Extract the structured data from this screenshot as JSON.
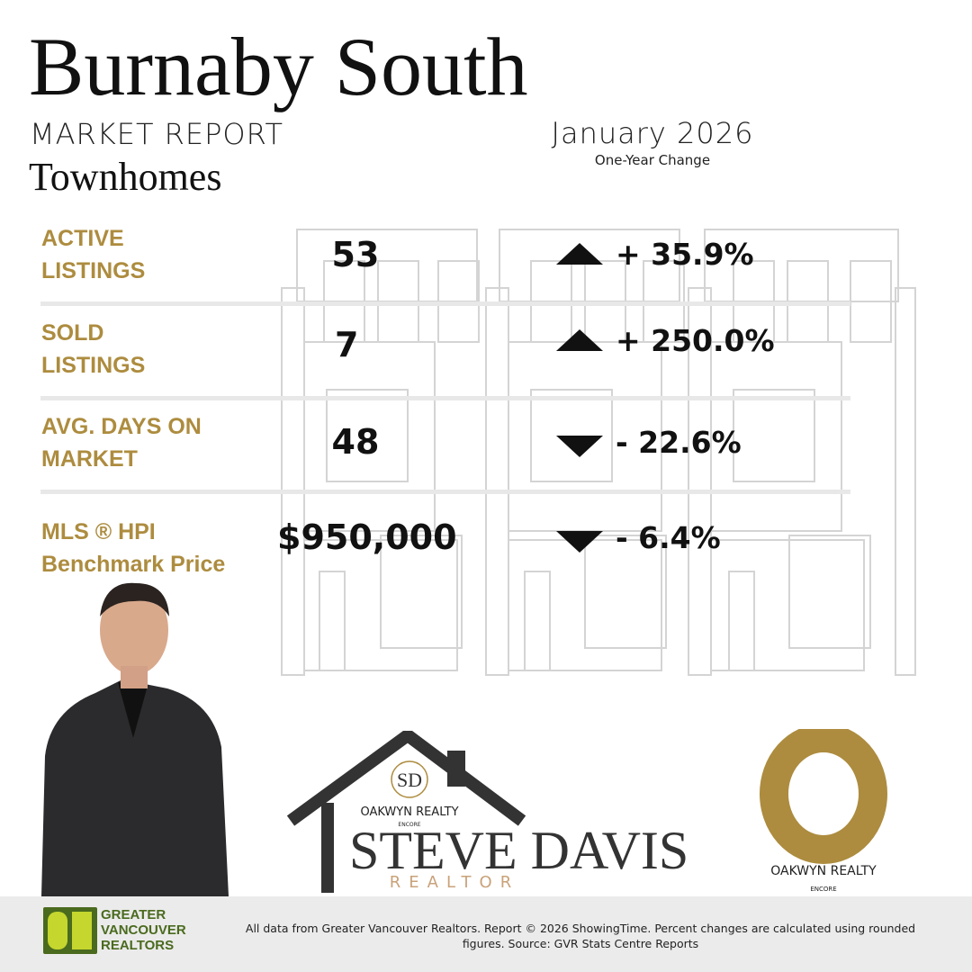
{
  "header": {
    "title": "Burnaby South",
    "subtitle": "MARKET REPORT",
    "property_type": "Townhomes",
    "date": "January 2026",
    "change_caption": "One-Year Change"
  },
  "stats": [
    {
      "label_line1": "ACTIVE",
      "label_line2": "LISTINGS",
      "value": "53",
      "direction": "up",
      "change": "+ 35.9%"
    },
    {
      "label_line1": "SOLD",
      "label_line2": "LISTINGS",
      "value": "7",
      "direction": "up",
      "change": "+ 250.0%"
    },
    {
      "label_line1": "AVG. DAYS ON",
      "label_line2": "MARKET",
      "value": "48",
      "direction": "down",
      "change": "- 22.6%"
    },
    {
      "label_line1": "MLS ®  HPI",
      "label_line2": "Benchmark Price",
      "value": "$950,000",
      "direction": "down",
      "change": "- 6.4%"
    }
  ],
  "branding": {
    "monogram": "SD",
    "brokerage": "OAKWYN REALTY",
    "brokerage_sub": "ENCORE",
    "agent_name": "STEVE DAVIS",
    "agent_title": "REALTOR",
    "board_logo": "GREATER VANCOUVER REALTORS"
  },
  "footer": {
    "disclaimer": "All data from Greater Vancouver Realtors. Report © 2026 ShowingTime. Percent changes are calculated using rounded figures. Source: GVR Stats Centre Reports"
  },
  "colors": {
    "gold": "#ad8c3f",
    "dark": "#333333",
    "green": "#4a6a1e"
  }
}
